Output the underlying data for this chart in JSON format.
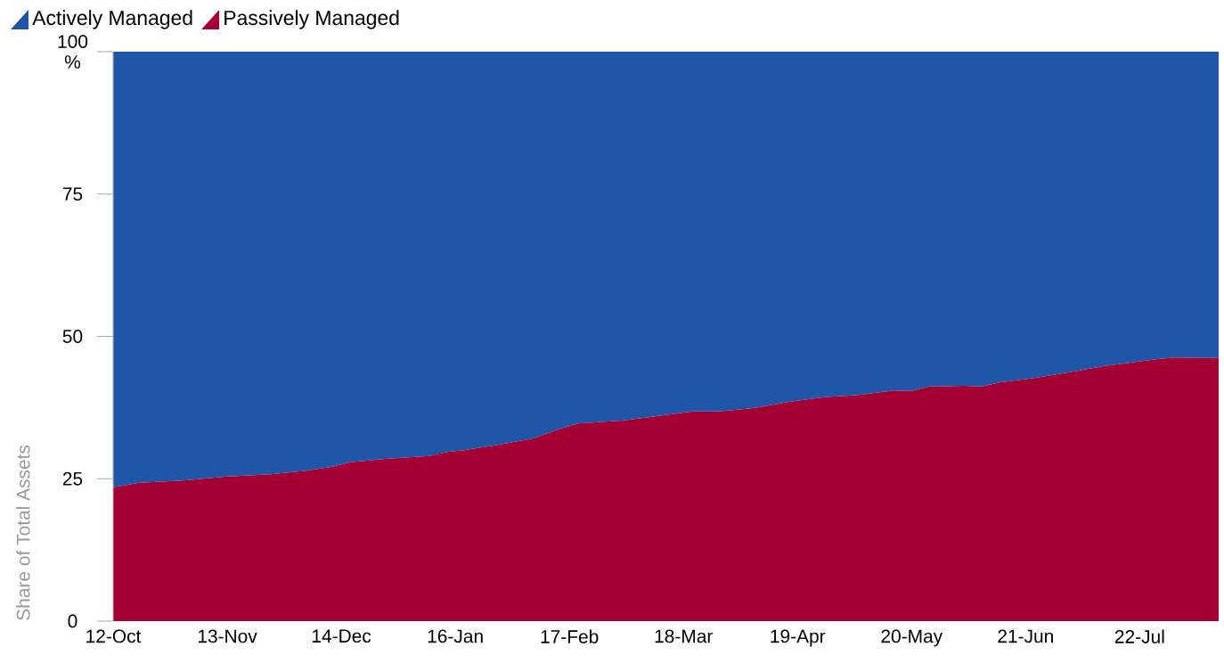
{
  "chart_data": {
    "type": "area",
    "stacked": true,
    "ylabel": "Share of Total Assets",
    "legend": "top left",
    "x": [
      "2012-10",
      "2013-01",
      "2013-06",
      "2013-11",
      "2014-04",
      "2014-08",
      "2014-11",
      "2015-01",
      "2015-05",
      "2015-10",
      "2015-12",
      "2016-02",
      "2016-06",
      "2016-10",
      "2017-01",
      "2017-03",
      "2017-08",
      "2017-11",
      "2018-04",
      "2018-07",
      "2018-11",
      "2019-03",
      "2019-07",
      "2019-11",
      "2020-03",
      "2020-05",
      "2020-07",
      "2020-11",
      "2021-01",
      "2021-03",
      "2021-07",
      "2021-11",
      "2022-03",
      "2022-06",
      "2022-09",
      "2022-11",
      "2023-02",
      "2023-04"
    ],
    "xlim": [
      "2012-10",
      "2023-04"
    ],
    "xticks": [
      {
        "value": "2012-10",
        "label": "12-Oct"
      },
      {
        "value": "2013-11",
        "label": "13-Nov"
      },
      {
        "value": "2014-12",
        "label": "14-Dec"
      },
      {
        "value": "2016-01",
        "label": "16-Jan"
      },
      {
        "value": "2017-02",
        "label": "17-Feb"
      },
      {
        "value": "2018-03",
        "label": "18-Mar"
      },
      {
        "value": "2019-04",
        "label": "19-Apr"
      },
      {
        "value": "2020-05",
        "label": "20-May"
      },
      {
        "value": "2021-06",
        "label": "21-Jun"
      },
      {
        "value": "2022-07",
        "label": "22-Jul"
      }
    ],
    "ylim": [
      0,
      100
    ],
    "yticks": [
      {
        "value": 0,
        "label": "0"
      },
      {
        "value": 25,
        "label": "25"
      },
      {
        "value": 50,
        "label": "50"
      },
      {
        "value": 75,
        "label": "75"
      },
      {
        "value": 100,
        "label": "100 %"
      }
    ],
    "series": [
      {
        "name": "Passively Managed",
        "color": "#a50034",
        "values": [
          23.5,
          24.3,
          24.7,
          25.4,
          25.8,
          26.4,
          27.1,
          27.9,
          28.5,
          29.0,
          29.7,
          30.0,
          31.0,
          32.1,
          33.8,
          34.7,
          35.2,
          35.8,
          36.8,
          36.8,
          37.4,
          38.5,
          39.3,
          39.7,
          40.5,
          40.4,
          41.2,
          41.3,
          41.2,
          41.9,
          42.7,
          43.7,
          44.8,
          45.4,
          46.0,
          46.3,
          46.2,
          46.2
        ]
      },
      {
        "name": "Actively Managed",
        "color": "#1f56a8",
        "values": [
          76.5,
          75.7,
          75.3,
          74.6,
          74.2,
          73.6,
          72.9,
          72.1,
          71.5,
          71.0,
          70.3,
          70.0,
          69.0,
          67.9,
          66.2,
          65.3,
          64.8,
          64.2,
          63.2,
          63.2,
          62.6,
          61.5,
          60.7,
          60.3,
          59.5,
          59.6,
          58.8,
          58.7,
          58.8,
          58.1,
          57.3,
          56.3,
          55.2,
          54.6,
          54.0,
          53.7,
          53.8,
          53.8
        ]
      }
    ]
  }
}
